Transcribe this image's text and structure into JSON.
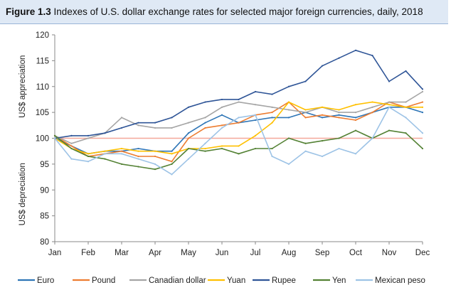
{
  "figure": {
    "number": "Figure 1.3",
    "caption": "Indexes of U.S. dollar exchange rates for selected major foreign currencies, daily, 2018"
  },
  "chart_data": {
    "type": "line",
    "title": "Indexes of U.S. dollar exchange rates for selected major foreign currencies, daily, 2018",
    "ylabel_upper": "US$ appreciation",
    "ylabel_lower": "US$ depreciation",
    "ylim": [
      80,
      120
    ],
    "yticks": [
      80,
      85,
      90,
      95,
      100,
      105,
      110,
      115,
      120
    ],
    "xlim": [
      0,
      11
    ],
    "categories": [
      "Jan",
      "Feb",
      "Mar",
      "Apr",
      "May",
      "Jun",
      "Jul",
      "Aug",
      "Sep",
      "Oct",
      "Nov",
      "Dec"
    ],
    "reference_line": {
      "value": 100,
      "color": "#f4a89a"
    },
    "grid": false,
    "legend_position": "bottom",
    "x": [
      0,
      0.5,
      1,
      1.5,
      2,
      2.5,
      3,
      3.5,
      4,
      4.5,
      5,
      5.5,
      6,
      6.5,
      7,
      7.5,
      8,
      8.5,
      9,
      9.5,
      10,
      10.5,
      11
    ],
    "series": [
      {
        "name": "Euro",
        "color": "#2e75b6",
        "values": [
          100,
          98.5,
          97,
          97.5,
          97.5,
          98,
          97.5,
          97.5,
          101,
          103,
          104.5,
          103,
          103.5,
          104,
          104,
          105,
          104,
          104.5,
          104,
          105,
          106,
          106,
          105
        ]
      },
      {
        "name": "Pound",
        "color": "#ed7d31",
        "values": [
          100.5,
          98.5,
          96.5,
          97,
          97.5,
          96.5,
          96.5,
          95.5,
          100,
          102,
          102.5,
          103,
          104.5,
          105,
          107,
          104,
          104.5,
          104,
          103.5,
          105,
          107,
          106,
          107
        ]
      },
      {
        "name": "Canadian dollar",
        "color": "#a5a5a5",
        "values": [
          100.5,
          99,
          100,
          101,
          104,
          102.5,
          102,
          102,
          103,
          104,
          106,
          107,
          106.5,
          106,
          105.5,
          105,
          106,
          105,
          105,
          106,
          107,
          107,
          109
        ]
      },
      {
        "name": "Yuan",
        "color": "#ffc000",
        "values": [
          100,
          98,
          97,
          97.5,
          98,
          97.5,
          97.5,
          97,
          98,
          98,
          98.5,
          98.5,
          100.5,
          103,
          107,
          105.5,
          106,
          105.5,
          106.5,
          107,
          106.5,
          106,
          106
        ]
      },
      {
        "name": "Rupee",
        "color": "#2f5597",
        "values": [
          100,
          100.5,
          100.5,
          101,
          102,
          103,
          103,
          104,
          106,
          107,
          107.5,
          107.5,
          109,
          108.5,
          110,
          111,
          114,
          115.5,
          117,
          116,
          111,
          113,
          109.5
        ]
      },
      {
        "name": "Yen",
        "color": "#548235",
        "values": [
          100.5,
          98,
          96.5,
          96,
          95,
          94.5,
          94,
          95,
          98,
          97.5,
          98,
          97,
          98,
          98,
          100,
          99,
          99.5,
          100,
          101.5,
          100,
          101.5,
          101,
          98
        ]
      },
      {
        "name": "Mexican peso",
        "color": "#9dc3e6",
        "values": [
          100,
          96,
          95.5,
          97,
          97,
          96,
          95,
          93,
          96,
          99,
          102,
          104,
          104.5,
          96.5,
          95,
          97.5,
          96.5,
          98,
          97,
          100,
          106,
          104,
          101
        ]
      }
    ]
  }
}
